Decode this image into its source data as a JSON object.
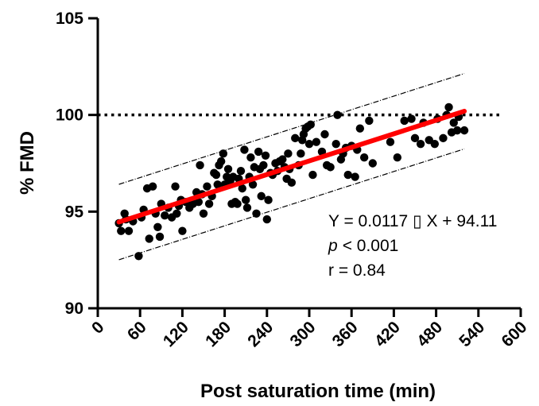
{
  "chart_data": {
    "type": "scatter",
    "xlabel": "Post saturation time (min)",
    "ylabel": "% FMD",
    "xlim": [
      0,
      600
    ],
    "ylim": [
      90,
      105
    ],
    "xticks": [
      0,
      60,
      120,
      180,
      240,
      300,
      360,
      420,
      480,
      540,
      600
    ],
    "yticks": [
      90,
      95,
      100,
      105
    ],
    "grid": false,
    "reference_line": {
      "y": 100,
      "style": "dotted"
    },
    "regression": {
      "slope": 0.0117,
      "intercept": 94.11,
      "x_range": [
        30,
        520
      ],
      "color": "#ff0000"
    },
    "prediction_band": {
      "offset": 1.95
    },
    "annotations": {
      "equation": "Y = 0.0117 ▯ X + 94.11",
      "p_label": "p",
      "p_value": "< 0.001",
      "r": "r = 0.84"
    },
    "points": [
      [
        30,
        94.4
      ],
      [
        33,
        94.0
      ],
      [
        38,
        94.9
      ],
      [
        40,
        94.6
      ],
      [
        44,
        94.0
      ],
      [
        50,
        94.5
      ],
      [
        58,
        92.7
      ],
      [
        62,
        94.7
      ],
      [
        65,
        95.1
      ],
      [
        70,
        96.2
      ],
      [
        73,
        93.6
      ],
      [
        78,
        96.3
      ],
      [
        82,
        94.9
      ],
      [
        85,
        94.2
      ],
      [
        88,
        93.7
      ],
      [
        90,
        95.4
      ],
      [
        95,
        94.8
      ],
      [
        100,
        95.2
      ],
      [
        105,
        94.7
      ],
      [
        110,
        96.3
      ],
      [
        112,
        94.9
      ],
      [
        115,
        95.3
      ],
      [
        118,
        95.6
      ],
      [
        120,
        94.0
      ],
      [
        125,
        95.5
      ],
      [
        130,
        95.2
      ],
      [
        135,
        95.4
      ],
      [
        140,
        96.0
      ],
      [
        143,
        95.5
      ],
      [
        145,
        97.4
      ],
      [
        148,
        95.9
      ],
      [
        150,
        94.9
      ],
      [
        155,
        96.3
      ],
      [
        158,
        95.4
      ],
      [
        162,
        95.8
      ],
      [
        165,
        97.0
      ],
      [
        168,
        96.9
      ],
      [
        170,
        96.4
      ],
      [
        172,
        97.4
      ],
      [
        175,
        97.6
      ],
      [
        178,
        98.0
      ],
      [
        180,
        96.4
      ],
      [
        183,
        96.8
      ],
      [
        185,
        97.2
      ],
      [
        188,
        96.6
      ],
      [
        190,
        95.4
      ],
      [
        192,
        96.8
      ],
      [
        195,
        95.5
      ],
      [
        198,
        95.4
      ],
      [
        200,
        96.7
      ],
      [
        203,
        97.1
      ],
      [
        205,
        96.2
      ],
      [
        208,
        98.2
      ],
      [
        210,
        95.6
      ],
      [
        212,
        95.2
      ],
      [
        215,
        96.8
      ],
      [
        217,
        97.8
      ],
      [
        220,
        96.4
      ],
      [
        222,
        97.3
      ],
      [
        225,
        94.9
      ],
      [
        228,
        98.1
      ],
      [
        230,
        97.2
      ],
      [
        232,
        95.8
      ],
      [
        235,
        97.4
      ],
      [
        238,
        97.9
      ],
      [
        240,
        94.6
      ],
      [
        242,
        95.6
      ],
      [
        245,
        97.0
      ],
      [
        248,
        96.9
      ],
      [
        252,
        97.5
      ],
      [
        255,
        97.1
      ],
      [
        258,
        97.6
      ],
      [
        262,
        97.7
      ],
      [
        265,
        97.3
      ],
      [
        268,
        96.7
      ],
      [
        270,
        98.0
      ],
      [
        272,
        97.2
      ],
      [
        275,
        96.5
      ],
      [
        280,
        98.8
      ],
      [
        285,
        97.4
      ],
      [
        288,
        98.0
      ],
      [
        290,
        98.7
      ],
      [
        292,
        99.0
      ],
      [
        295,
        99.3
      ],
      [
        298,
        99.4
      ],
      [
        300,
        98.5
      ],
      [
        302,
        99.5
      ],
      [
        305,
        96.9
      ],
      [
        310,
        98.6
      ],
      [
        318,
        98.1
      ],
      [
        322,
        99.0
      ],
      [
        325,
        97.4
      ],
      [
        330,
        97.3
      ],
      [
        338,
        98.5
      ],
      [
        340,
        100.0
      ],
      [
        345,
        97.7
      ],
      [
        348,
        98.0
      ],
      [
        352,
        98.3
      ],
      [
        355,
        96.9
      ],
      [
        360,
        98.4
      ],
      [
        365,
        96.8
      ],
      [
        368,
        98.2
      ],
      [
        372,
        99.3
      ],
      [
        378,
        97.8
      ],
      [
        385,
        99.7
      ],
      [
        390,
        97.5
      ],
      [
        415,
        98.6
      ],
      [
        425,
        97.8
      ],
      [
        435,
        99.7
      ],
      [
        445,
        99.8
      ],
      [
        450,
        98.8
      ],
      [
        458,
        98.5
      ],
      [
        462,
        99.6
      ],
      [
        470,
        98.7
      ],
      [
        478,
        98.5
      ],
      [
        482,
        99.8
      ],
      [
        490,
        98.8
      ],
      [
        495,
        100.0
      ],
      [
        498,
        100.4
      ],
      [
        502,
        99.1
      ],
      [
        505,
        99.6
      ],
      [
        510,
        99.2
      ],
      [
        512,
        99.9
      ],
      [
        520,
        99.2
      ]
    ]
  }
}
